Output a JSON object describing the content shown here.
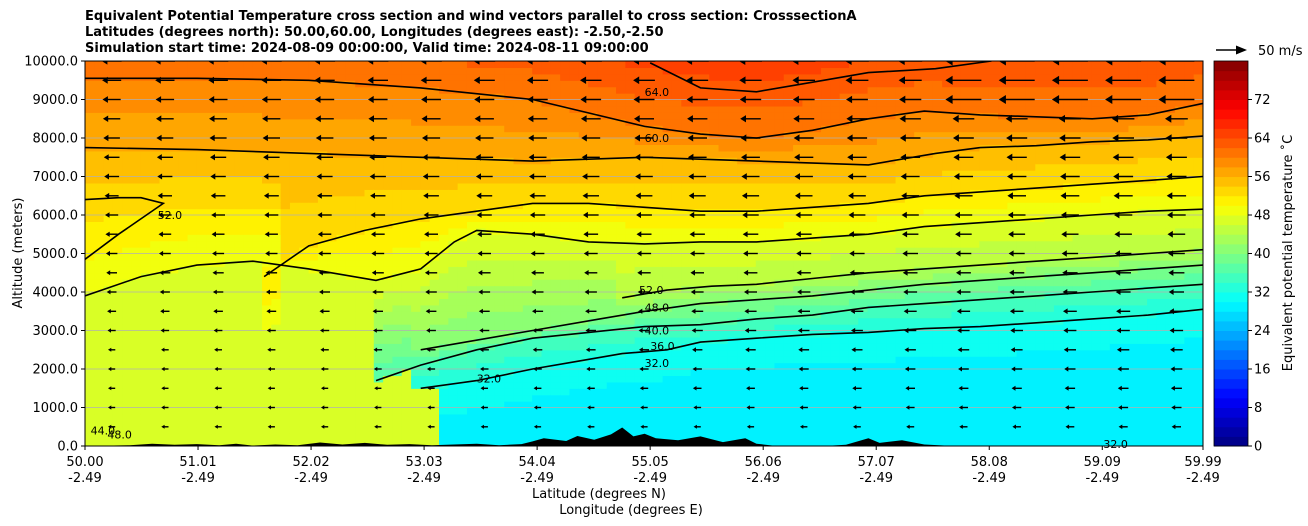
{
  "chart_data": {
    "type": "heatmap",
    "title_lines": [
      "Equivalent Potential Temperature cross section and wind vectors parallel to cross section: CrosssectionA",
      "Latitudes (degrees north): 50.00,60.00, Longitudes (degrees east): -2.50,-2.50",
      "Simulation start time: 2024-08-09 00:00:00, Valid time: 2024-08-11 09:00:00"
    ],
    "xlabel": "Latitude (degrees N)",
    "xlabel2": "Longitude (degrees E)",
    "ylabel": "Altitude (meters)",
    "xlim": [
      50.0,
      59.99
    ],
    "ylim": [
      0,
      10000
    ],
    "x_ticks": [
      {
        "lat": 50.0,
        "lat_label": "50.00",
        "lon_label": "-2.49"
      },
      {
        "lat": 51.01,
        "lat_label": "51.01",
        "lon_label": "-2.49"
      },
      {
        "lat": 52.02,
        "lat_label": "52.02",
        "lon_label": "-2.49"
      },
      {
        "lat": 53.03,
        "lat_label": "53.03",
        "lon_label": "-2.49"
      },
      {
        "lat": 54.04,
        "lat_label": "54.04",
        "lon_label": "-2.49"
      },
      {
        "lat": 55.05,
        "lat_label": "55.05",
        "lon_label": "-2.49"
      },
      {
        "lat": 56.06,
        "lat_label": "56.06",
        "lon_label": "-2.49"
      },
      {
        "lat": 57.07,
        "lat_label": "57.07",
        "lon_label": "-2.49"
      },
      {
        "lat": 58.08,
        "lat_label": "58.08",
        "lon_label": "-2.49"
      },
      {
        "lat": 59.09,
        "lat_label": "59.09",
        "lon_label": "-2.49"
      },
      {
        "lat": 59.99,
        "lat_label": "59.99",
        "lon_label": "-2.49"
      }
    ],
    "y_ticks": [
      {
        "v": 0,
        "label": "0.0"
      },
      {
        "v": 1000,
        "label": "1000.0"
      },
      {
        "v": 2000,
        "label": "2000.0"
      },
      {
        "v": 3000,
        "label": "3000.0"
      },
      {
        "v": 4000,
        "label": "4000.0"
      },
      {
        "v": 5000,
        "label": "5000.0"
      },
      {
        "v": 6000,
        "label": "6000.0"
      },
      {
        "v": 7000,
        "label": "7000.0"
      },
      {
        "v": 8000,
        "label": "8000.0"
      },
      {
        "v": 9000,
        "label": "9000.0"
      },
      {
        "v": 10000,
        "label": "10000.0"
      }
    ],
    "grid": "horizontal",
    "colorbar": {
      "label": "Equivalent potential temperature ˚C",
      "range": [
        0,
        80
      ],
      "ticks": [
        {
          "v": 0,
          "label": "0"
        },
        {
          "v": 8,
          "label": "8"
        },
        {
          "v": 16,
          "label": "16"
        },
        {
          "v": 24,
          "label": "24"
        },
        {
          "v": 32,
          "label": "32"
        },
        {
          "v": 40,
          "label": "40"
        },
        {
          "v": 48,
          "label": "48"
        },
        {
          "v": 56,
          "label": "56"
        },
        {
          "v": 64,
          "label": "64"
        },
        {
          "v": 72,
          "label": "72"
        }
      ],
      "colormap": "jet"
    },
    "wind_key": {
      "label": "50 m/s",
      "speed": 50
    },
    "contour_levels": [
      32,
      36,
      40,
      44,
      48,
      52,
      56,
      60,
      64
    ],
    "contours": [
      {
        "level": 64,
        "x": [
          55.05,
          55.5,
          56.0,
          56.6,
          57.0,
          57.6,
          58.1
        ],
        "y": [
          9950,
          9300,
          9200,
          9500,
          9700,
          9800,
          10000
        ]
      },
      {
        "level": 60,
        "x": [
          50.0,
          51.0,
          52.0,
          53.0,
          54.0,
          55.0,
          55.5,
          56.0,
          56.5,
          57.0,
          57.5,
          58.0,
          58.5,
          59.0,
          59.5,
          59.99
        ],
        "y": [
          9550,
          9550,
          9500,
          9300,
          9000,
          8300,
          8100,
          8000,
          8200,
          8500,
          8700,
          8600,
          8550,
          8500,
          8600,
          8900
        ]
      },
      {
        "level": 56,
        "x": [
          50.0,
          51.0,
          52.0,
          53.0,
          54.0,
          55.0,
          56.0,
          57.0,
          57.6,
          58.0,
          58.5,
          59.0,
          59.5,
          59.99
        ],
        "y": [
          7750,
          7700,
          7600,
          7500,
          7400,
          7500,
          7400,
          7300,
          7600,
          7750,
          7800,
          7900,
          7950,
          8050
        ]
      },
      {
        "level": 52,
        "x": [
          50.0,
          50.3,
          50.7,
          50.5,
          50.3,
          50.0
        ],
        "y": [
          4850,
          5500,
          6300,
          6450,
          6450,
          6400
        ]
      },
      {
        "level": 52,
        "x": [
          51.6,
          52.0,
          52.5,
          53.0,
          53.5,
          54.0,
          54.5,
          55.0,
          55.5,
          56.0,
          56.5,
          57.0,
          57.5,
          58.0,
          58.5,
          59.0,
          59.5,
          59.99
        ],
        "y": [
          4400,
          5200,
          5600,
          5900,
          6100,
          6300,
          6300,
          6200,
          6100,
          6100,
          6200,
          6300,
          6500,
          6600,
          6700,
          6800,
          6900,
          7000
        ]
      },
      {
        "level": 48,
        "x": [
          50.0,
          50.5,
          51.0,
          51.5,
          52.0,
          52.6,
          53.0,
          53.3,
          53.5,
          54.0,
          54.5,
          55.0,
          55.5,
          56.0,
          56.5,
          57.0,
          57.5,
          58.0,
          58.5,
          59.0,
          59.5,
          59.99
        ],
        "y": [
          3900,
          4400,
          4700,
          4800,
          4600,
          4300,
          4600,
          5300,
          5600,
          5500,
          5300,
          5250,
          5300,
          5300,
          5400,
          5500,
          5700,
          5800,
          5900,
          6000,
          6100,
          6150
        ]
      },
      {
        "level": 44,
        "x": [
          54.8,
          55.2,
          55.6,
          56.0,
          56.5,
          57.0,
          57.5,
          58.0,
          58.5,
          59.0,
          59.5,
          59.99
        ],
        "y": [
          3850,
          4050,
          4150,
          4200,
          4350,
          4500,
          4600,
          4700,
          4800,
          4900,
          5000,
          5100
        ]
      },
      {
        "level": 40,
        "x": [
          53.0,
          54.0,
          54.6,
          55.0,
          55.5,
          56.0,
          56.5,
          57.0,
          57.5,
          58.0,
          58.5,
          59.0,
          59.5,
          59.99
        ],
        "y": [
          2500,
          3000,
          3300,
          3500,
          3700,
          3800,
          3900,
          4050,
          4200,
          4300,
          4400,
          4500,
          4600,
          4700
        ]
      },
      {
        "level": 36,
        "x": [
          52.6,
          53.0,
          53.5,
          54.0,
          54.5,
          55.0,
          55.5,
          56.0,
          56.5,
          57.0,
          57.5,
          58.0,
          58.5,
          59.0,
          59.5,
          59.99
        ],
        "y": [
          1700,
          2100,
          2500,
          2800,
          2950,
          3100,
          3150,
          3300,
          3400,
          3600,
          3700,
          3800,
          3900,
          4000,
          4100,
          4200
        ]
      },
      {
        "level": 32,
        "x": [
          53.0,
          53.5,
          54.0,
          54.4,
          54.8,
          55.2,
          55.5,
          56.0,
          56.5,
          57.0,
          57.5,
          58.0,
          58.5,
          59.0,
          59.5,
          59.99
        ],
        "y": [
          1500,
          1700,
          2000,
          2200,
          2400,
          2500,
          2700,
          2800,
          2900,
          2950,
          3050,
          3100,
          3200,
          3300,
          3400,
          3550
        ]
      }
    ],
    "contour_labels": [
      {
        "text": "64.0",
        "x": 55.0,
        "y": 9200
      },
      {
        "text": "60.0",
        "x": 55.0,
        "y": 8000
      },
      {
        "text": "52.0",
        "x": 50.65,
        "y": 6000
      },
      {
        "text": "52.0",
        "x": 54.95,
        "y": 4050
      },
      {
        "text": "48.0",
        "x": 55.0,
        "y": 3600
      },
      {
        "text": "40.0",
        "x": 55.0,
        "y": 3000
      },
      {
        "text": "36.0",
        "x": 55.05,
        "y": 2600
      },
      {
        "text": "32.0",
        "x": 55.0,
        "y": 2150
      },
      {
        "text": "32.0",
        "x": 53.5,
        "y": 1750
      },
      {
        "text": "44.0",
        "x": 50.05,
        "y": 400
      },
      {
        "text": "48.0",
        "x": 50.2,
        "y": 300
      },
      {
        "text": "32.0",
        "x": 59.1,
        "y": 50
      }
    ]
  }
}
